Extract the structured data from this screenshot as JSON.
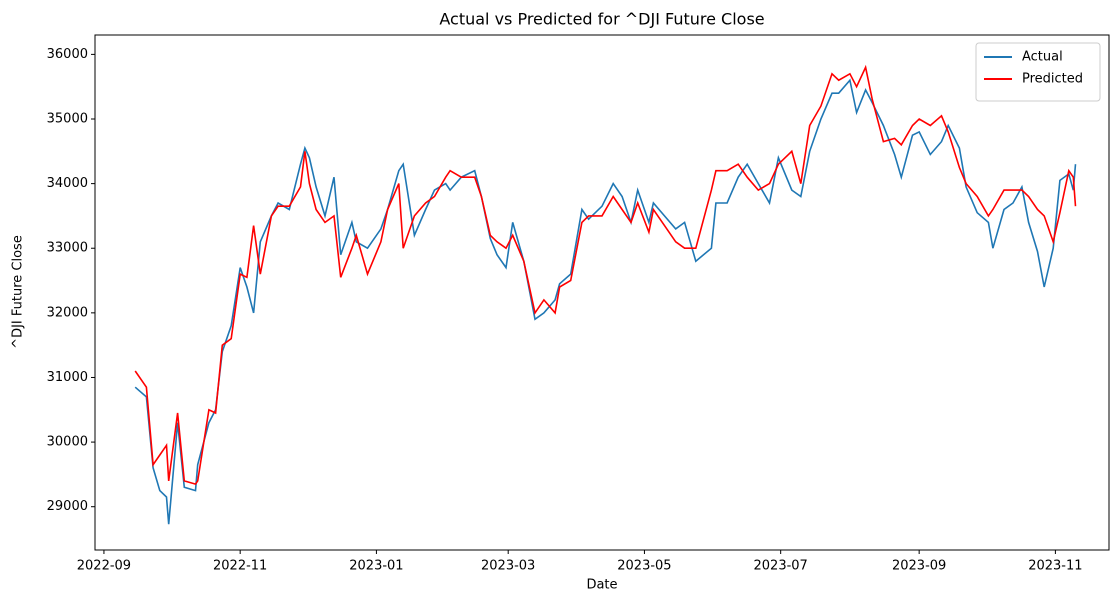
{
  "chart_data": {
    "type": "line",
    "title": "Actual vs Predicted for ^DJI Future Close",
    "x_label": "Date",
    "y_label": "^DJI Future Close",
    "x": [
      "2022-09-15",
      "2022-09-20",
      "2022-09-23",
      "2022-09-26",
      "2022-09-29",
      "2022-09-30",
      "2022-10-04",
      "2022-10-07",
      "2022-10-12",
      "2022-10-13",
      "2022-10-18",
      "2022-10-21",
      "2022-10-24",
      "2022-10-28",
      "2022-11-01",
      "2022-11-04",
      "2022-11-07",
      "2022-11-10",
      "2022-11-15",
      "2022-11-18",
      "2022-11-23",
      "2022-11-28",
      "2022-11-30",
      "2022-12-02",
      "2022-12-05",
      "2022-12-09",
      "2022-12-13",
      "2022-12-16",
      "2022-12-21",
      "2022-12-23",
      "2022-12-28",
      "2023-01-03",
      "2023-01-06",
      "2023-01-11",
      "2023-01-13",
      "2023-01-18",
      "2023-01-23",
      "2023-01-27",
      "2023-02-01",
      "2023-02-03",
      "2023-02-08",
      "2023-02-14",
      "2023-02-17",
      "2023-02-21",
      "2023-02-24",
      "2023-02-28",
      "2023-03-03",
      "2023-03-08",
      "2023-03-13",
      "2023-03-17",
      "2023-03-22",
      "2023-03-24",
      "2023-03-29",
      "2023-04-03",
      "2023-04-06",
      "2023-04-12",
      "2023-04-17",
      "2023-04-21",
      "2023-04-25",
      "2023-04-28",
      "2023-05-03",
      "2023-05-05",
      "2023-05-10",
      "2023-05-15",
      "2023-05-19",
      "2023-05-24",
      "2023-05-31",
      "2023-06-02",
      "2023-06-07",
      "2023-06-12",
      "2023-06-16",
      "2023-06-21",
      "2023-06-26",
      "2023-06-30",
      "2023-07-06",
      "2023-07-10",
      "2023-07-14",
      "2023-07-19",
      "2023-07-24",
      "2023-07-27",
      "2023-08-01",
      "2023-08-04",
      "2023-08-08",
      "2023-08-11",
      "2023-08-16",
      "2023-08-21",
      "2023-08-24",
      "2023-08-29",
      "2023-09-01",
      "2023-09-06",
      "2023-09-11",
      "2023-09-14",
      "2023-09-19",
      "2023-09-22",
      "2023-09-27",
      "2023-10-02",
      "2023-10-04",
      "2023-10-09",
      "2023-10-13",
      "2023-10-17",
      "2023-10-20",
      "2023-10-24",
      "2023-10-27",
      "2023-10-31",
      "2023-11-03",
      "2023-11-07",
      "2023-11-09",
      "2023-11-10"
    ],
    "series": [
      {
        "name": "Actual",
        "color": "#1f77b4",
        "values": [
          30850,
          30700,
          29600,
          29250,
          29150,
          28730,
          30300,
          29300,
          29250,
          29650,
          30300,
          30500,
          31400,
          31800,
          32700,
          32400,
          32000,
          33100,
          33500,
          33700,
          33600,
          34300,
          34550,
          34400,
          33950,
          33500,
          34100,
          32900,
          33400,
          33100,
          33000,
          33300,
          33600,
          34200,
          34300,
          33200,
          33600,
          33900,
          34000,
          33900,
          34100,
          34200,
          33800,
          33150,
          32900,
          32700,
          33400,
          32800,
          31900,
          32000,
          32200,
          32450,
          32600,
          33600,
          33450,
          33650,
          34000,
          33800,
          33400,
          33900,
          33400,
          33700,
          33500,
          33300,
          33400,
          32800,
          33000,
          33700,
          33700,
          34100,
          34300,
          34000,
          33700,
          34400,
          33900,
          33800,
          34500,
          35000,
          35400,
          35400,
          35600,
          35100,
          35450,
          35250,
          34900,
          34450,
          34100,
          34750,
          34800,
          34450,
          34650,
          34900,
          34550,
          33950,
          33550,
          33400,
          33000,
          33600,
          33700,
          33950,
          33400,
          32950,
          32400,
          33000,
          34050,
          34150,
          33900,
          34300
        ]
      },
      {
        "name": "Predicted",
        "color": "#ff0000",
        "values": [
          31100,
          30850,
          29650,
          29800,
          29950,
          29400,
          30450,
          29400,
          29350,
          29400,
          30500,
          30450,
          31500,
          31600,
          32600,
          32550,
          33350,
          32600,
          33500,
          33650,
          33650,
          33950,
          34500,
          34000,
          33600,
          33400,
          33500,
          32550,
          33000,
          33200,
          32600,
          33100,
          33600,
          34000,
          33000,
          33500,
          33700,
          33800,
          34100,
          34200,
          34100,
          34100,
          33800,
          33200,
          33100,
          33000,
          33200,
          32800,
          32000,
          32200,
          32000,
          32400,
          32500,
          33400,
          33500,
          33500,
          33800,
          33600,
          33400,
          33700,
          33250,
          33600,
          33350,
          33100,
          33000,
          33000,
          33900,
          34200,
          34200,
          34300,
          34100,
          33900,
          34000,
          34300,
          34500,
          34000,
          34900,
          35200,
          35700,
          35600,
          35700,
          35500,
          35800,
          35300,
          34650,
          34700,
          34600,
          34900,
          35000,
          34900,
          35050,
          34800,
          34250,
          34000,
          33800,
          33500,
          33600,
          33900,
          33900,
          33900,
          33800,
          33600,
          33500,
          33100,
          33550,
          34200,
          34100,
          33650
        ]
      }
    ],
    "xlim": [
      "2022-08-28",
      "2023-11-25"
    ],
    "xticks": [
      "2022-09",
      "2022-11",
      "2023-01",
      "2023-03",
      "2023-05",
      "2023-07",
      "2023-09",
      "2023-11"
    ],
    "ylim": [
      28330,
      36300
    ],
    "yticks": [
      29000,
      30000,
      31000,
      32000,
      33000,
      34000,
      35000,
      36000
    ],
    "grid": false,
    "legend": "upper right"
  }
}
